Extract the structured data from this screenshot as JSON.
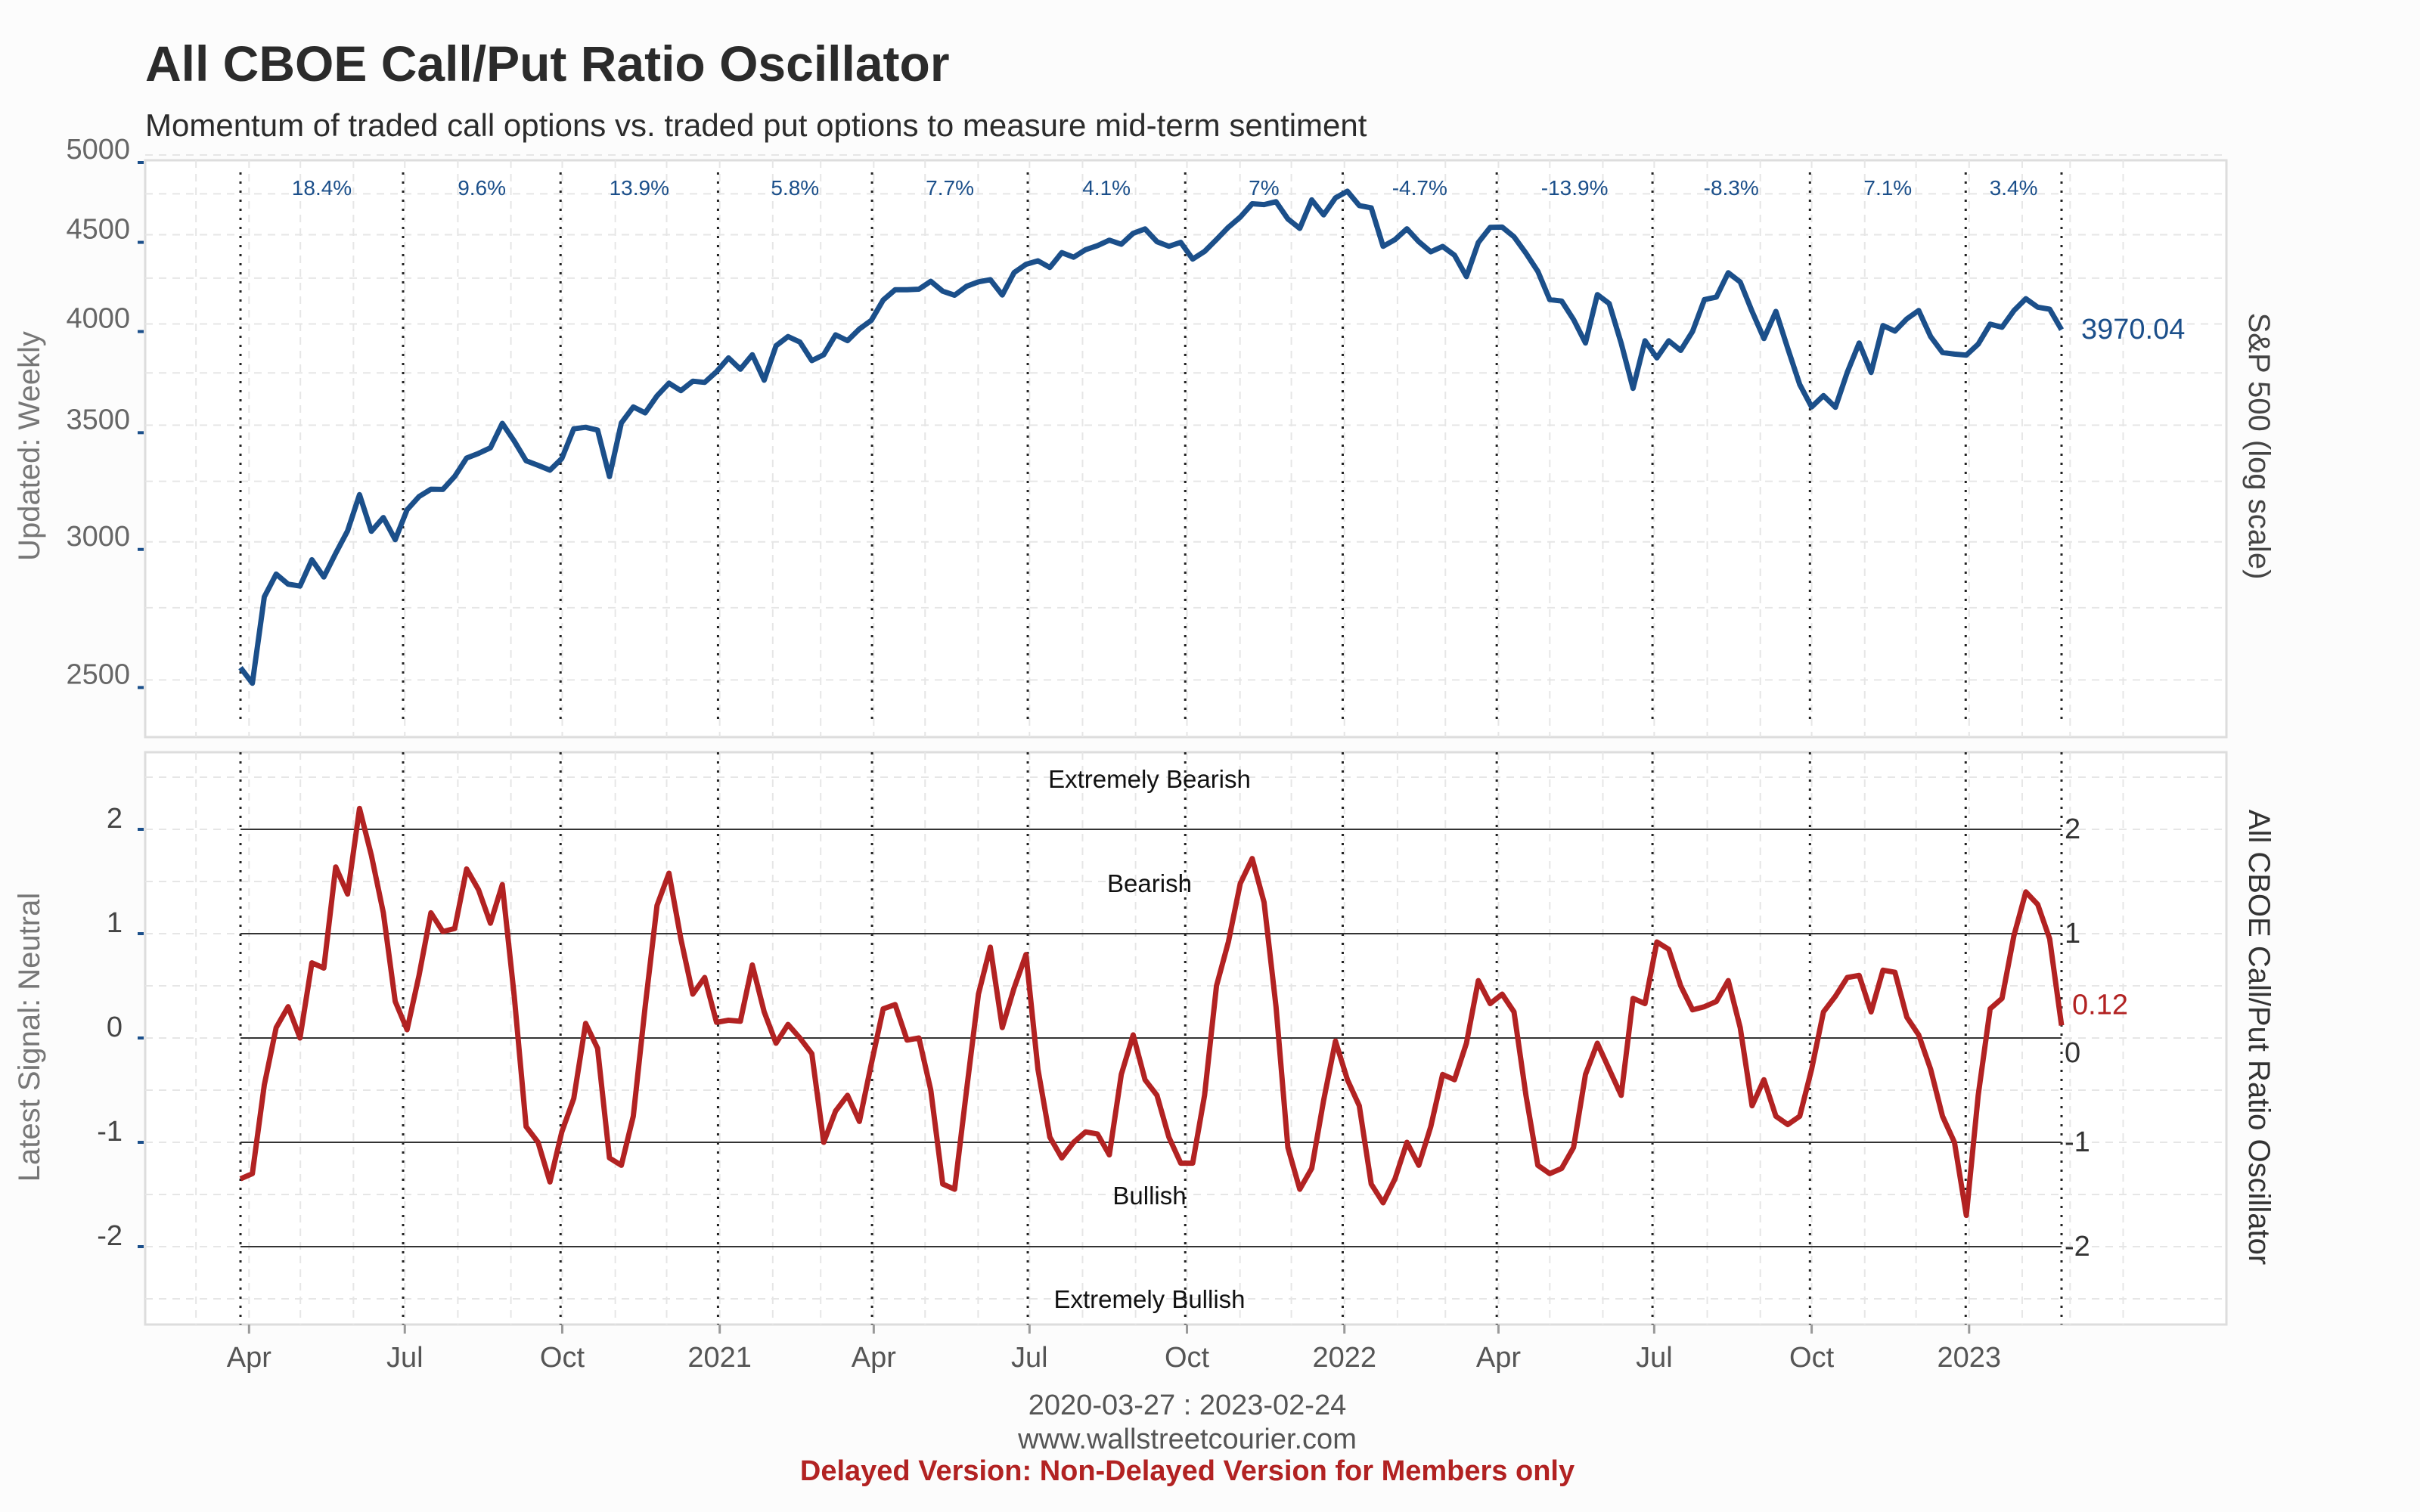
{
  "title": "All CBOE Call/Put Ratio Oscillator",
  "subtitle": "Momentum of traded call options vs. traded put options to measure mid-term sentiment",
  "footer": {
    "date_range": "2020-03-27 : 2023-02-24",
    "website": "www.wallstreetcourier.com",
    "delayed_notice": "Delayed Version: Non-Delayed Version for Members only"
  },
  "colors": {
    "sp500": "#1b4f8a",
    "oscillator": "#b22222",
    "returns_text": "#1b4f8a"
  },
  "chart_data": [
    {
      "type": "line",
      "ylabel_left": "Updated: Weekly",
      "ylabel_right": "S&P 500 (log scale)",
      "scale": "log",
      "ylim": [
        2420,
        5000
      ],
      "yticks": [
        2500,
        3000,
        3500,
        4000,
        4500,
        5000
      ],
      "last_value_label": "3970.04",
      "grid": true,
      "x_start": "2020-03-27",
      "x_end": "2023-02-24",
      "series": [
        {
          "values": [
            2541,
            2489,
            2790,
            2875,
            2837,
            2830,
            2930,
            2864,
            2955,
            3044,
            3193,
            3042,
            3098,
            3009,
            3130,
            3185,
            3216,
            3215,
            3271,
            3351,
            3372,
            3397,
            3508,
            3427,
            3339,
            3319,
            3298,
            3349,
            3483,
            3490,
            3477,
            3270,
            3510,
            3585,
            3557,
            3638,
            3699,
            3663,
            3709,
            3703,
            3756,
            3825,
            3768,
            3841,
            3714,
            3887,
            3934,
            3906,
            3811,
            3841,
            3943,
            3913,
            3974,
            4019,
            4129,
            4185,
            4185,
            4188,
            4232,
            4177,
            4155,
            4204,
            4229,
            4241,
            4156,
            4281,
            4328,
            4348,
            4310,
            4395,
            4369,
            4412,
            4436,
            4468,
            4444,
            4509,
            4535,
            4459,
            4432,
            4455,
            4358,
            4402,
            4472,
            4545,
            4606,
            4688,
            4683,
            4701,
            4595,
            4538,
            4712,
            4620,
            4725,
            4766,
            4677,
            4663,
            4432,
            4471,
            4536,
            4459,
            4400,
            4431,
            4380,
            4258,
            4454,
            4544,
            4546,
            4488,
            4392,
            4288,
            4131,
            4123,
            4024,
            3901,
            4158,
            4109,
            3900,
            3674,
            3912,
            3825,
            3912,
            3863,
            3961,
            4131,
            4145,
            4280,
            4228,
            4067,
            3924,
            4067,
            3873,
            3693,
            3585,
            3639,
            3583,
            3753,
            3901,
            3752,
            3992,
            3963,
            4027,
            4072,
            3934,
            3852,
            3844,
            3839,
            3895,
            3999,
            3983,
            4071,
            4136,
            4090,
            4079,
            3970.04
          ]
        }
      ],
      "period_returns": [
        {
          "label": "18.4%",
          "from": "2020-03-27",
          "to": "2020-06-30"
        },
        {
          "label": "9.6%",
          "from": "2020-06-30",
          "to": "2020-09-30"
        },
        {
          "label": "13.9%",
          "from": "2020-09-30",
          "to": "2020-12-31"
        },
        {
          "label": "5.8%",
          "from": "2020-12-31",
          "to": "2021-03-31"
        },
        {
          "label": "7.7%",
          "from": "2021-03-31",
          "to": "2021-06-30"
        },
        {
          "label": "4.1%",
          "from": "2021-06-30",
          "to": "2021-09-30"
        },
        {
          "label": "7%",
          "from": "2021-09-30",
          "to": "2021-12-31"
        },
        {
          "label": "-4.7%",
          "from": "2021-12-31",
          "to": "2022-03-31"
        },
        {
          "label": "-13.9%",
          "from": "2022-03-31",
          "to": "2022-06-30"
        },
        {
          "label": "-8.3%",
          "from": "2022-06-30",
          "to": "2022-09-30"
        },
        {
          "label": "7.1%",
          "from": "2022-09-30",
          "to": "2022-12-30"
        },
        {
          "label": "3.4%",
          "from": "2022-12-30",
          "to": "2023-02-24"
        }
      ]
    },
    {
      "type": "line",
      "ylabel_left": "Latest Signal: Neutral",
      "ylabel_right": "All CBOE Call/Put Ratio Oscillator",
      "ylim": [
        -2.75,
        2.75
      ],
      "yticks": [
        -2,
        -1,
        0,
        1,
        2
      ],
      "right_ticks": [
        "2",
        "1",
        "0",
        "-1",
        "-2"
      ],
      "zone_labels": [
        "Extremely Bearish",
        "Bearish",
        "Bullish",
        "Extremely Bullish"
      ],
      "last_value_label": "0.12",
      "grid": true,
      "x_start": "2020-03-27",
      "x_end": "2023-02-24",
      "series": [
        {
          "values": [
            -1.35,
            -1.3,
            -0.45,
            0.1,
            0.3,
            0.0,
            0.72,
            0.67,
            1.64,
            1.38,
            2.2,
            1.75,
            1.2,
            0.35,
            0.08,
            0.6,
            1.2,
            1.02,
            1.05,
            1.62,
            1.42,
            1.1,
            1.47,
            0.4,
            -0.85,
            -1.0,
            -1.38,
            -0.9,
            -0.58,
            0.14,
            -0.1,
            -1.15,
            -1.22,
            -0.75,
            0.3,
            1.27,
            1.58,
            0.95,
            0.42,
            0.58,
            0.15,
            0.17,
            0.16,
            0.7,
            0.25,
            -0.05,
            0.13,
            0.0,
            -0.15,
            -1.0,
            -0.7,
            -0.55,
            -0.8,
            -0.25,
            0.28,
            0.32,
            -0.02,
            0.0,
            -0.5,
            -1.4,
            -1.45,
            -0.5,
            0.42,
            0.87,
            0.1,
            0.48,
            0.8,
            -0.3,
            -0.95,
            -1.15,
            -1.0,
            -0.9,
            -0.92,
            -1.12,
            -0.35,
            0.03,
            -0.4,
            -0.55,
            -0.95,
            -1.2,
            -1.2,
            -0.55,
            0.5,
            0.92,
            1.48,
            1.72,
            1.3,
            0.3,
            -1.05,
            -1.45,
            -1.25,
            -0.6,
            -0.03,
            -0.4,
            -0.65,
            -1.4,
            -1.58,
            -1.35,
            -1.0,
            -1.22,
            -0.85,
            -0.35,
            -0.4,
            -0.05,
            0.55,
            0.33,
            0.42,
            0.25,
            -0.55,
            -1.22,
            -1.3,
            -1.25,
            -1.05,
            -0.35,
            -0.05,
            -0.3,
            -0.55,
            0.38,
            0.33,
            0.92,
            0.85,
            0.5,
            0.27,
            0.3,
            0.35,
            0.55,
            0.1,
            -0.65,
            -0.4,
            -0.75,
            -0.83,
            -0.75,
            -0.3,
            0.25,
            0.4,
            0.58,
            0.6,
            0.25,
            0.65,
            0.63,
            0.2,
            0.03,
            -0.3,
            -0.75,
            -1.0,
            -1.7,
            -0.55,
            0.28,
            0.38,
            0.98,
            1.4,
            1.28,
            0.95,
            0.12
          ]
        }
      ]
    }
  ],
  "x_axis": {
    "ticks": [
      {
        "label": "Apr",
        "date": "2020-04-01"
      },
      {
        "label": "Jul",
        "date": "2020-07-01"
      },
      {
        "label": "Oct",
        "date": "2020-10-01"
      },
      {
        "label": "2021",
        "date": "2021-01-01"
      },
      {
        "label": "Apr",
        "date": "2021-04-01"
      },
      {
        "label": "Jul",
        "date": "2021-07-01"
      },
      {
        "label": "Oct",
        "date": "2021-10-01"
      },
      {
        "label": "2022",
        "date": "2022-01-01"
      },
      {
        "label": "Apr",
        "date": "2022-04-01"
      },
      {
        "label": "Jul",
        "date": "2022-07-01"
      },
      {
        "label": "Oct",
        "date": "2022-10-01"
      },
      {
        "label": "2023",
        "date": "2023-01-01"
      }
    ],
    "quarter_lines": [
      "2020-03-27",
      "2020-06-30",
      "2020-09-30",
      "2020-12-31",
      "2021-03-31",
      "2021-06-30",
      "2021-09-30",
      "2021-12-31",
      "2022-03-31",
      "2022-06-30",
      "2022-09-30",
      "2022-12-30",
      "2023-02-24"
    ]
  }
}
